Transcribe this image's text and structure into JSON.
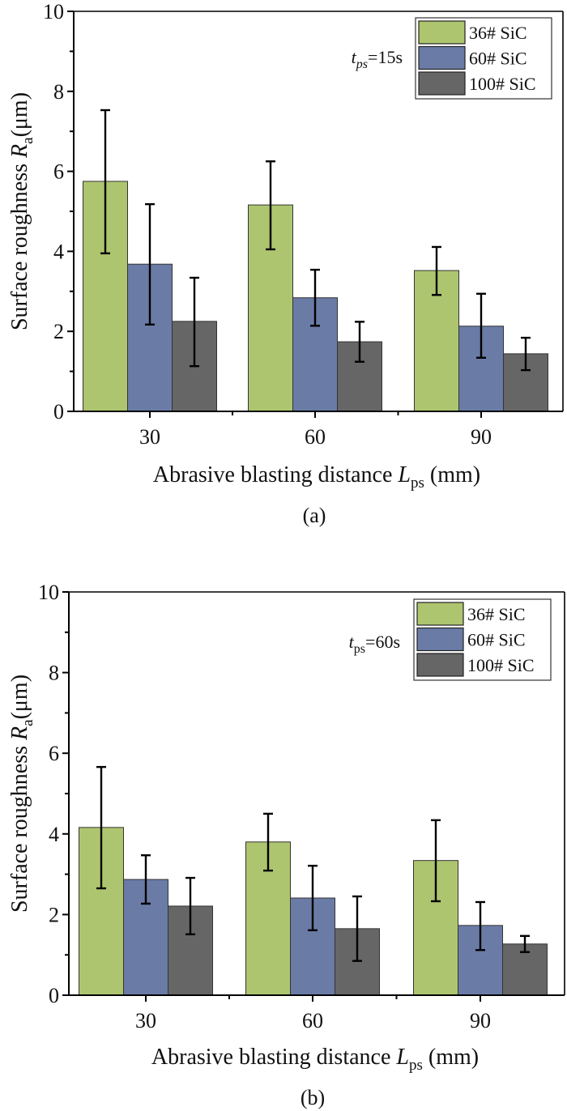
{
  "colors": {
    "36# SiC": "#aec56f",
    "60# SiC": "#6a7ba6",
    "100# SiC": "#666666",
    "axis": "#000000",
    "error_bar": "#000000"
  },
  "chart_data": [
    {
      "type": "bar",
      "panel_label": "(a)",
      "annotation": {
        "main": "t",
        "sub": "ps",
        "rest": "=15s",
        "sub_italic": true
      },
      "xlabel": {
        "main": "Abrasive blasting distance ",
        "var": "L",
        "sub": "ps",
        "rest": " (mm)"
      },
      "ylabel": {
        "main": "Surface roughness ",
        "var": "R",
        "sub": "a",
        "rest": "(μm)"
      },
      "categories": [
        "30",
        "60",
        "90"
      ],
      "ylim": [
        0,
        10
      ],
      "yticks": [
        "0",
        "2",
        "4",
        "6",
        "8",
        "10"
      ],
      "legend_position": "top-right",
      "grid": false,
      "series": [
        {
          "name": "36# SiC",
          "values": [
            5.75,
            5.16,
            3.52
          ],
          "err_low": [
            3.95,
            4.05,
            2.91
          ],
          "err_high": [
            7.53,
            6.25,
            4.11
          ]
        },
        {
          "name": "60# SiC",
          "values": [
            3.68,
            2.84,
            2.13
          ],
          "err_low": [
            2.17,
            2.14,
            1.34
          ],
          "err_high": [
            5.18,
            3.54,
            2.94
          ]
        },
        {
          "name": "100# SiC",
          "values": [
            2.25,
            1.74,
            1.44
          ],
          "err_low": [
            1.13,
            1.24,
            1.03
          ],
          "err_high": [
            3.34,
            2.24,
            1.84
          ]
        }
      ]
    },
    {
      "type": "bar",
      "panel_label": "(b)",
      "annotation": {
        "main": "t",
        "sub": "ps",
        "rest": "=60s",
        "sub_italic": false
      },
      "xlabel": {
        "main": "Abrasive blasting distance ",
        "var": "L",
        "sub": "ps",
        "rest": " (mm)"
      },
      "ylabel": {
        "main": "Surface roughness ",
        "var": "R",
        "sub": "a",
        "rest": "(μm)"
      },
      "categories": [
        "30",
        "60",
        "90"
      ],
      "ylim": [
        0,
        10
      ],
      "yticks": [
        "0",
        "2",
        "4",
        "6",
        "8",
        "10"
      ],
      "legend_position": "top-right",
      "grid": false,
      "series": [
        {
          "name": "36# SiC",
          "values": [
            4.16,
            3.8,
            3.34
          ],
          "err_low": [
            2.65,
            3.09,
            2.33
          ],
          "err_high": [
            5.66,
            4.5,
            4.34
          ]
        },
        {
          "name": "60# SiC",
          "values": [
            2.87,
            2.41,
            1.73
          ],
          "err_low": [
            2.27,
            1.61,
            1.12
          ],
          "err_high": [
            3.47,
            3.21,
            2.31
          ]
        },
        {
          "name": "100# SiC",
          "values": [
            2.21,
            1.65,
            1.27
          ],
          "err_low": [
            1.51,
            0.85,
            1.07
          ],
          "err_high": [
            2.91,
            2.45,
            1.47
          ]
        }
      ]
    }
  ]
}
